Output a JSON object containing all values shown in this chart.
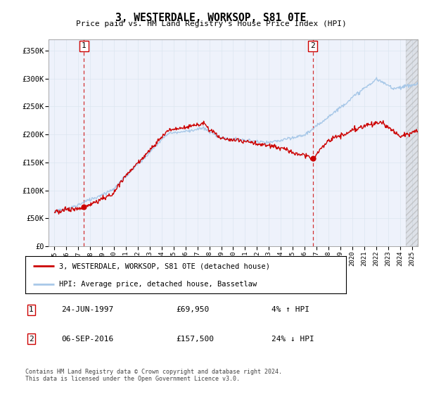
{
  "title": "3, WESTERDALE, WORKSOP, S81 0TE",
  "subtitle": "Price paid vs. HM Land Registry's House Price Index (HPI)",
  "ylim": [
    0,
    370000
  ],
  "yticks": [
    0,
    50000,
    100000,
    150000,
    200000,
    250000,
    300000,
    350000
  ],
  "ytick_labels": [
    "£0",
    "£50K",
    "£100K",
    "£150K",
    "£200K",
    "£250K",
    "£300K",
    "£350K"
  ],
  "hpi_color": "#a8c8e8",
  "price_color": "#cc0000",
  "dot_color": "#cc0000",
  "grid_color": "#dce6f0",
  "background_color": "#eef2fb",
  "sale1_date": "24-JUN-1997",
  "sale1_price": 69950,
  "sale1_hpi_diff": "4% ↑ HPI",
  "sale2_date": "06-SEP-2016",
  "sale2_price": 157500,
  "sale2_hpi_diff": "24% ↓ HPI",
  "legend_line1": "3, WESTERDALE, WORKSOP, S81 0TE (detached house)",
  "legend_line2": "HPI: Average price, detached house, Bassetlaw",
  "footer": "Contains HM Land Registry data © Crown copyright and database right 2024.\nThis data is licensed under the Open Government Licence v3.0.",
  "sale1_x": 1997.48,
  "sale2_x": 2016.68,
  "xmin": 1995.0,
  "xmax": 2025.5,
  "hatch_start": 2024.5
}
